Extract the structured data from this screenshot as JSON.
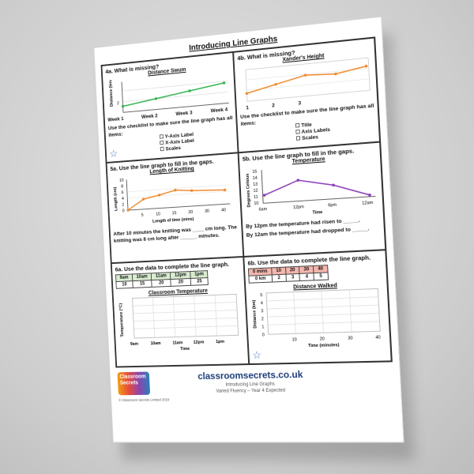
{
  "title": "Introducing Line Graphs",
  "q4a": {
    "question": "4a. What is missing?",
    "chart_title": "Distance Swum",
    "ylabel": "Distance (lengths)",
    "ytick": "2",
    "xticks": [
      "Week 1",
      "Week 2",
      "Week 3",
      "Week 4"
    ],
    "checklist_intro": "Use the checklist to make sure the line graph has all items:",
    "items": [
      "Y-Axis Label",
      "X-Axis Label",
      "Scales"
    ],
    "line_color": "#2fb34a"
  },
  "q4b": {
    "question": "4b. What is missing?",
    "chart_title": "Xander's Height",
    "xticks": [
      "1",
      "2",
      "3"
    ],
    "checklist_intro": "Use the checklist to make sure the line graph has all items:",
    "items": [
      "Title",
      "Axis Labels",
      "Scales"
    ],
    "line_color": "#f08a2e"
  },
  "q5a": {
    "question": "5a. Use the line graph to fill in the gaps.",
    "chart_title": "Length of Knitting",
    "ylabel": "Length (cm)",
    "xlabel": "Length of time (mins)",
    "yticks": [
      "10",
      "8",
      "6",
      "4",
      "2",
      "0"
    ],
    "xticks": [
      "5",
      "10",
      "15",
      "20",
      "30",
      "40"
    ],
    "text": "After 10 minutes the knitting was ____ cm long. The knitting was 8 cm long after ______ minutes."
  },
  "q5b": {
    "question": "5b. Use the line graph to fill in the gaps.",
    "chart_title": "Temperature",
    "ylabel": "Degrees Celsius",
    "xlabel": "Time",
    "yticks": [
      "15",
      "14",
      "13",
      "12",
      "11",
      "10"
    ],
    "xticks": [
      "6am",
      "12pm",
      "6pm",
      "12am"
    ],
    "text1": "By 12pm the temperature had risen to _____.",
    "text2": "By 12am the temperature had dropped to _____.",
    "line_color": "#8a3fb8"
  },
  "q6a": {
    "question": "6a. Use the data to complete the line graph.",
    "headers": [
      "9am",
      "10am",
      "11am",
      "12pm",
      "1pm"
    ],
    "values": [
      "10",
      "15",
      "20",
      "20",
      "25"
    ],
    "header_color": "#d9ecd0",
    "chart_title": "Classroom Temperature",
    "ylabel": "Temperature (°C)",
    "xlabel": "Time",
    "xticks": [
      "9am",
      "10am",
      "11am",
      "12pm",
      "1pm"
    ]
  },
  "q6b": {
    "question": "6b. Use the data to complete the line graph.",
    "headers": [
      "0 mins",
      "10",
      "20",
      "30",
      "40"
    ],
    "values": [
      "0 km",
      "2",
      "3",
      "4",
      "5"
    ],
    "header_color": "#f4b6ae",
    "chart_title": "Distance Walked",
    "ylabel": "Distance (km)",
    "xlabel": "Time (minutes)",
    "yticks": [
      "5",
      "4",
      "3",
      "2",
      "1",
      "0"
    ],
    "xticks": [
      "10",
      "20",
      "30",
      "40"
    ]
  },
  "footer": {
    "logo": "Classroom Secrets",
    "copyright": "© Classroom Secrets Limited 2019",
    "site": "classroomsecrets.co.uk",
    "line1": "Introducing Line Graphs",
    "line2": "Varied Fluency – Year 4 Expected"
  }
}
